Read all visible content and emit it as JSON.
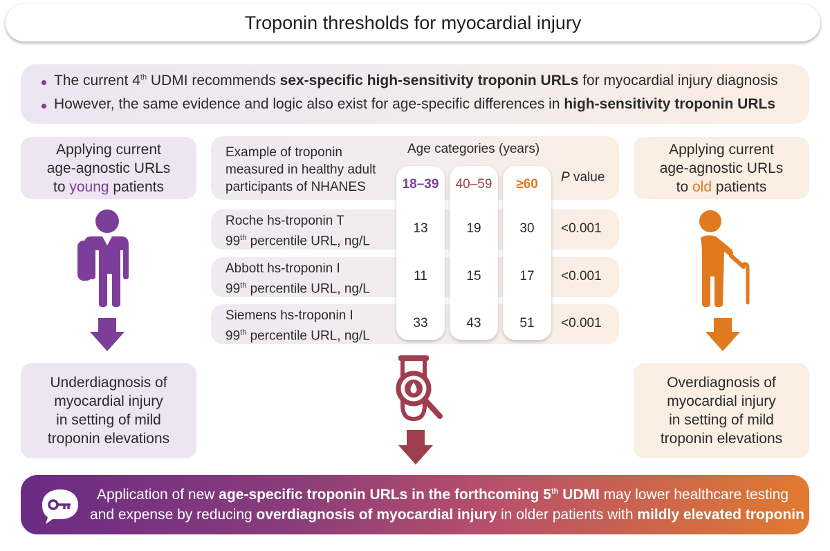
{
  "title": "Troponin thresholds  for myocardial injury",
  "intro": {
    "line1": {
      "pre": "The current 4",
      "sup": "th",
      "mid": " UDMI recommends ",
      "bold": "sex-specific high-sensitivity troponin URLs",
      "post": " for myocardial injury diagnosis"
    },
    "line2": {
      "pre": "However, the same evidence and logic also exist for age-specific differences in ",
      "bold": "high-sensitivity troponin URLs"
    }
  },
  "left": {
    "top_line1": "Applying current",
    "top_line2": "age-agnostic URLs",
    "top_line3_pre": "to ",
    "top_line3_accent": "young",
    "top_line3_post": " patients",
    "bottom_line1": "Underdiagnosis of",
    "bottom_line2": "myocardial injury",
    "bottom_line3": "in setting of mild",
    "bottom_line4": "troponin elevations"
  },
  "right": {
    "top_line1": "Applying current",
    "top_line2": "age-agnostic URLs",
    "top_line3_pre": "to ",
    "top_line3_accent": "old",
    "top_line3_post": " patients",
    "bottom_line1": "Overdiagnosis of",
    "bottom_line2": "myocardial injury",
    "bottom_line3": "in setting of mild",
    "bottom_line4": "troponin elevations"
  },
  "table": {
    "header_line1": "Example of troponin",
    "header_line2": "measured in healthy adult",
    "header_line3": "participants of NHANES",
    "age_title": "Age categories (years)",
    "col1": "18–39",
    "col2": "40–59",
    "col3": "≥60",
    "p_italic": "P",
    "p_rest": " value",
    "rows": [
      {
        "name": "Roche hs-troponin T",
        "url_pre": "99",
        "url_sup": "th",
        "url_post": " percentile URL, ng/L",
        "v1": "13",
        "v2": "19",
        "v3": "30",
        "p": "<0.001"
      },
      {
        "name": "Abbott hs-troponin I",
        "url_pre": "99",
        "url_sup": "th",
        "url_post": " percentile URL, ng/L",
        "v1": "11",
        "v2": "15",
        "v3": "17",
        "p": "<0.001"
      },
      {
        "name": "Siemens hs-troponin I",
        "url_pre": "99",
        "url_sup": "th",
        "url_post": " percentile URL, ng/L",
        "v1": "33",
        "v2": "43",
        "v3": "51",
        "p": "<0.001"
      }
    ]
  },
  "bottom": {
    "line1_pre": "Application of new ",
    "line1_bold1": "age-specific troponin URLs in the forthcoming 5",
    "line1_sup": "th",
    "line1_bold2": " UDMI",
    "line1_post": " may lower healthcare testing",
    "line2_pre": "and expense by reducing ",
    "line2_bold1": "overdiagnosis of myocardial injury",
    "line2_mid": " in older patients with ",
    "line2_bold2": "mildly elevated troponin"
  },
  "colors": {
    "purple": "#7c3e98",
    "orange": "#e07a1f",
    "maroon": "#9e3e4e"
  },
  "icons": {
    "young": "young-person-icon",
    "old": "elderly-person-with-cane-icon",
    "test": "test-tube-magnifier-icon",
    "key": "key-speech-bubble-icon"
  }
}
